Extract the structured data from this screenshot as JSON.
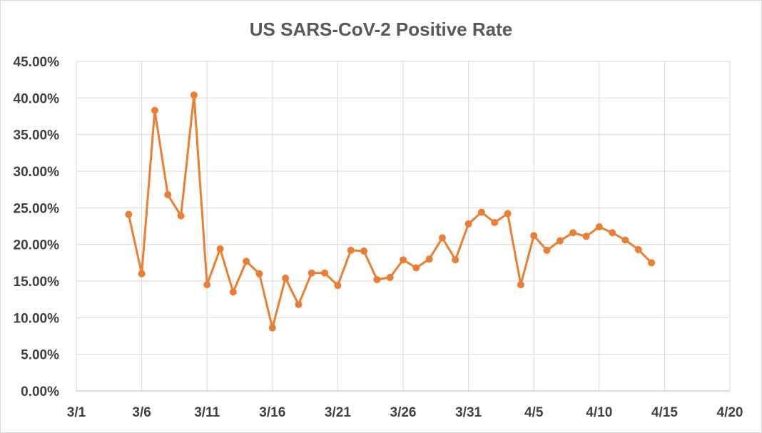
{
  "chart_data": {
    "type": "line",
    "title": "US SARS-CoV-2 Positive Rate",
    "xlabel": "",
    "ylabel": "",
    "series_color": "#ED7D31",
    "grid": true,
    "ylim": [
      0,
      45
    ],
    "y_ticks": [
      0,
      5,
      10,
      15,
      20,
      25,
      30,
      35,
      40,
      45
    ],
    "y_tick_labels": [
      "0.00%",
      "5.00%",
      "10.00%",
      "15.00%",
      "20.00%",
      "25.00%",
      "30.00%",
      "35.00%",
      "40.00%",
      "45.00%"
    ],
    "xlim_day": [
      0,
      50
    ],
    "x_tick_days": [
      0,
      5,
      10,
      15,
      20,
      25,
      30,
      35,
      40,
      45,
      50
    ],
    "x_tick_labels": [
      "3/1",
      "3/6",
      "3/11",
      "3/16",
      "3/21",
      "3/26",
      "3/31",
      "4/5",
      "4/10",
      "4/15",
      "4/20"
    ],
    "series": [
      {
        "name": "Positive Rate",
        "x_day": [
          4,
          5,
          6,
          7,
          8,
          9,
          10,
          11,
          12,
          13,
          14,
          15,
          16,
          17,
          18,
          19,
          20,
          21,
          22,
          23,
          24,
          25,
          26,
          27,
          28,
          29,
          30,
          31,
          32,
          33,
          34,
          35,
          36,
          37,
          38,
          39,
          40,
          41,
          42,
          43,
          44
        ],
        "values": [
          24.1,
          16.0,
          38.3,
          26.8,
          23.9,
          40.4,
          14.5,
          19.4,
          13.5,
          17.7,
          16.0,
          8.6,
          15.4,
          11.8,
          16.1,
          16.1,
          14.4,
          19.2,
          19.1,
          15.2,
          15.5,
          17.9,
          16.8,
          18.0,
          20.9,
          17.9,
          22.8,
          24.4,
          23.0,
          24.2,
          14.5,
          21.2,
          19.2,
          20.5,
          21.6,
          21.1,
          22.4,
          21.6,
          20.6,
          19.3,
          17.5
        ]
      }
    ]
  }
}
